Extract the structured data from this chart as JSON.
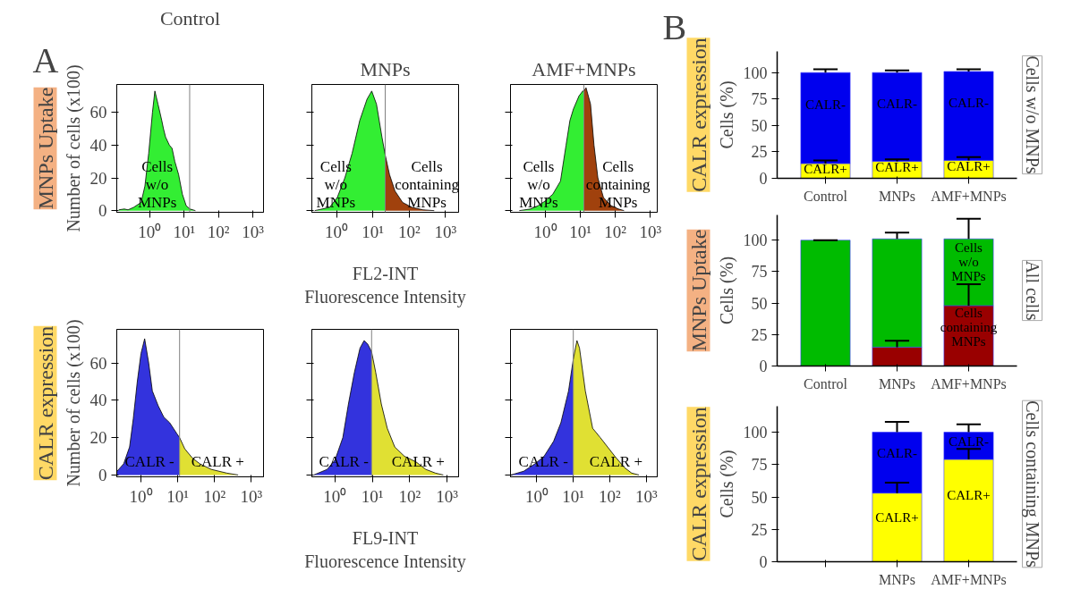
{
  "chart_data": [
    {
      "type": "area",
      "title": "Control",
      "ylabel": "Number of cells (x100)",
      "xlim": [
        0.11,
        2040
      ],
      "ylim": [
        -1,
        77
      ],
      "xticks": [
        {
          "value": 1,
          "label": "10⁰"
        },
        {
          "value": 10,
          "label": "10¹"
        },
        {
          "value": 100,
          "label": "10²"
        },
        {
          "value": 1000,
          "label": "10³"
        }
      ],
      "yticks": [
        0,
        20,
        40,
        60
      ],
      "log": "x",
      "grid": false,
      "series": [
        {
          "name": "Cells\nw/o\nMNPs",
          "color": "#33ee33",
          "x": [
            0.126,
            0.182,
            0.234,
            0.339,
            0.562,
            0.724,
            0.933,
            1.2,
            1.41,
            1.74,
            2.24,
            2.51,
            2.88,
            3.72,
            4.47,
            5.37,
            6.92,
            8.91,
            11.5,
            14.8,
            21.4
          ],
          "values": [
            0.5,
            1,
            0.5,
            2,
            5,
            15,
            35,
            60,
            73,
            65,
            55,
            50,
            45,
            40,
            38,
            30,
            22,
            10,
            3,
            1,
            0
          ]
        }
      ],
      "ref_lines": [
        {
          "axis": "x",
          "value": 14.5,
          "color": "#808080"
        }
      ],
      "annotations": [
        "A",
        "MNPs Uptake"
      ]
    },
    {
      "type": "area",
      "title": "MNPs",
      "xlabel": "FL2-INT\nFluorescence Intensity",
      "xlim": [
        0.21,
        2290
      ],
      "ylim": [
        -1,
        77
      ],
      "xticks": [
        {
          "value": 1,
          "label": "10⁰"
        },
        {
          "value": 10,
          "label": "10¹"
        },
        {
          "value": 100,
          "label": "10²"
        },
        {
          "value": 1000,
          "label": "10³"
        }
      ],
      "yticks": [
        0,
        20,
        40,
        60
      ],
      "log": "x",
      "grid": false,
      "tick_labels": "x",
      "series": [
        {
          "name": "Cells\nw/o\nMNPs",
          "color": "#33ee33",
          "x": [
            0.251,
            0.646,
            1.05,
            1.7,
            2.69,
            4.37,
            6.92,
            9.33,
            12.6,
            17.8,
            21.9
          ],
          "values": [
            0,
            2,
            8,
            20,
            35,
            55,
            68,
            73,
            65,
            45,
            34
          ]
        },
        {
          "name": "Cells\ncontaining\nMNPs",
          "color": "#a0410d",
          "x": [
            21.9,
            28.8,
            40.7,
            66.1,
            120,
            240,
            490
          ],
          "values": [
            34,
            22,
            12,
            5,
            2,
            0.5,
            0
          ]
        }
      ],
      "ref_lines": [
        {
          "axis": "x",
          "value": 21.9,
          "color": "#808080"
        }
      ]
    },
    {
      "type": "area",
      "title": "AMF+MNPs",
      "xlim": [
        0.1,
        1580
      ],
      "ylim": [
        -1,
        77
      ],
      "xticks": [
        {
          "value": 1,
          "label": "10⁰"
        },
        {
          "value": 10,
          "label": "10¹"
        },
        {
          "value": 100,
          "label": "10²"
        },
        {
          "value": 1000,
          "label": "10³"
        }
      ],
      "yticks": [
        0,
        20,
        40,
        60
      ],
      "log": "x",
      "grid": false,
      "tick_labels": "x",
      "series": [
        {
          "name": "Cells\nw/o\nMNPs",
          "color": "#33ee33",
          "x": [
            0.178,
            0.372,
            0.617,
            1,
            1.62,
            2.69,
            3.89,
            5.01,
            6.31,
            9.12,
            11.7,
            12.6
          ],
          "values": [
            0,
            1,
            3,
            6,
            10,
            18,
            40,
            55,
            62,
            70,
            73,
            73
          ]
        },
        {
          "name": "Cells\ncontaining\nMNPs",
          "color": "#a0410d",
          "x": [
            12.6,
            14.5,
            19.5,
            24.5,
            31.6,
            45.7,
            75.9,
            123,
            178
          ],
          "values": [
            73,
            75,
            65,
            40,
            20,
            8,
            3,
            1,
            0
          ]
        }
      ],
      "ref_lines": [
        {
          "axis": "x",
          "value": 12.6,
          "color": "#808080"
        }
      ]
    },
    {
      "type": "area",
      "ylabel": "Number of cells (x100)",
      "xlim": [
        0.22,
        2140
      ],
      "ylim": [
        -1,
        78
      ],
      "xticks": [
        {
          "value": 1,
          "label": "10⁰"
        },
        {
          "value": 10,
          "label": "10¹"
        },
        {
          "value": 100,
          "label": "10²"
        },
        {
          "value": 1000,
          "label": "10³"
        }
      ],
      "yticks": [
        0,
        20,
        40,
        60
      ],
      "log": "x",
      "grid": false,
      "series": [
        {
          "name": "CALR -",
          "color": "#3333dd",
          "x": [
            0.224,
            0.339,
            0.49,
            0.617,
            0.794,
            1,
            1.26,
            1.62,
            2.04,
            2.95,
            4.17,
            6.03,
            7.59,
            9.55,
            11.2
          ],
          "values": [
            2,
            6,
            15,
            30,
            50,
            65,
            73,
            60,
            45,
            37,
            31,
            28,
            25,
            22,
            20
          ]
        },
        {
          "name": "CALR +",
          "color": "#e0e033",
          "x": [
            11.2,
            15.5,
            25.1,
            39.8,
            81.3,
            214,
            437
          ],
          "values": [
            20,
            14,
            9,
            6,
            3,
            1,
            0
          ]
        }
      ],
      "ref_lines": [
        {
          "axis": "x",
          "value": 11.2,
          "color": "#808080"
        }
      ],
      "annotations": [
        "CALR expression"
      ]
    },
    {
      "type": "area",
      "xlabel": "FL9-INT\nFluorescence Intensity",
      "xlim": [
        0.24,
        2040
      ],
      "ylim": [
        -1,
        78
      ],
      "xticks": [
        {
          "value": 1,
          "label": "10⁰"
        },
        {
          "value": 10,
          "label": "10¹"
        },
        {
          "value": 100,
          "label": "10²"
        },
        {
          "value": 1000,
          "label": "10³"
        }
      ],
      "yticks": [
        0,
        20,
        40,
        60
      ],
      "log": "x",
      "grid": false,
      "tick_labels": "x",
      "series": [
        {
          "name": "CALR -",
          "color": "#3333dd",
          "x": [
            0.269,
            0.617,
            1,
            1.62,
            2.29,
            3.31,
            4.68,
            6.03,
            7.59,
            9.55
          ],
          "values": [
            0,
            3,
            8,
            20,
            38,
            55,
            68,
            72,
            70,
            66
          ]
        },
        {
          "name": "CALR +",
          "color": "#e0e033",
          "x": [
            9.55,
            12.3,
            17.4,
            25.1,
            39.8,
            72.4,
            148,
            269,
            490,
            794
          ],
          "values": [
            66,
            55,
            38,
            25,
            15,
            10,
            7,
            3,
            1,
            0
          ]
        }
      ],
      "ref_lines": [
        {
          "axis": "x",
          "value": 9.55,
          "color": "#808080"
        }
      ]
    },
    {
      "type": "area",
      "xlim": [
        0.19,
        2000
      ],
      "ylim": [
        -1,
        78
      ],
      "xticks": [
        {
          "value": 1,
          "label": "10⁰"
        },
        {
          "value": 10,
          "label": "10¹"
        },
        {
          "value": 100,
          "label": "10²"
        },
        {
          "value": 1000,
          "label": "10³"
        }
      ],
      "yticks": [
        0,
        20,
        40,
        60
      ],
      "log": "x",
      "grid": false,
      "tick_labels": "x",
      "series": [
        {
          "name": "CALR -",
          "color": "#3333dd",
          "x": [
            0.195,
            0.437,
            0.891,
            1.58,
            2.88,
            4.57,
            7.41,
            10
          ],
          "values": [
            0,
            2,
            6,
            10,
            18,
            28,
            45,
            62
          ]
        },
        {
          "name": "CALR +",
          "color": "#e0e033",
          "x": [
            10,
            12.6,
            14.8,
            21.4,
            33.9,
            55,
            87.1,
            138,
            251,
            398,
            631
          ],
          "values": [
            62,
            72,
            68,
            45,
            25,
            20,
            15,
            10,
            4,
            1,
            0
          ]
        }
      ],
      "ref_lines": [
        {
          "axis": "x",
          "value": 10,
          "color": "#808080"
        }
      ]
    },
    {
      "type": "bar",
      "stacked": true,
      "ylabel": "Cells (%)",
      "y2label": "Cells w/o MNPs",
      "categories": [
        "Control",
        "MNPs",
        "AMF+MNPs"
      ],
      "ylim": [
        0,
        120
      ],
      "yticks": [
        0,
        25,
        50,
        75,
        100
      ],
      "grid": false,
      "series": [
        {
          "color": "#ffff00",
          "values": [
            14,
            16,
            17
          ],
          "errors": [
            [
              14,
              17
            ],
            [
              16,
              18
            ],
            [
              17,
              20
            ]
          ],
          "value_labels": [
            "CALR+",
            "CALR+",
            "CALR+"
          ]
        },
        {
          "color": "#0000ee",
          "values": [
            86,
            84,
            84
          ],
          "errors": [
            [
              100,
              103
            ],
            [
              100,
              102
            ],
            [
              101,
              103
            ]
          ],
          "value_labels": [
            "CALR-",
            "CALR-",
            "CALR-"
          ]
        }
      ],
      "annotations": [
        "B",
        "CALR expression"
      ]
    },
    {
      "type": "bar",
      "stacked": true,
      "ylabel": "Cells (%)",
      "y2label": "All cells",
      "categories": [
        "Control",
        "MNPs",
        "AMF+MNPs"
      ],
      "ylim": [
        0,
        120
      ],
      "yticks": [
        0,
        25,
        50,
        75,
        100
      ],
      "grid": false,
      "series": [
        {
          "color": "#990000",
          "values": [
            0,
            15,
            48
          ],
          "errors": [
            null,
            [
              15,
              20
            ],
            [
              48,
              65
            ]
          ],
          "value_labels": [
            null,
            null,
            "Cells\ncontaining\nMNPs"
          ]
        },
        {
          "color": "#00bb00",
          "values": [
            100,
            86,
            53
          ],
          "errors": [
            [
              100,
              100
            ],
            [
              101,
              106
            ],
            [
              101,
              117
            ]
          ],
          "value_labels": [
            null,
            null,
            "Cells\nw/o\nMNPs"
          ]
        }
      ],
      "annotations": [
        "MNPs Uptake"
      ]
    },
    {
      "type": "bar",
      "stacked": true,
      "ylabel": "Cells (%)",
      "y2label": "Cells containing MNPs",
      "categories": [
        null,
        "MNPs",
        "AMF+MNPs"
      ],
      "ylim": [
        0,
        120
      ],
      "yticks": [
        0,
        25,
        50,
        75,
        100
      ],
      "grid": false,
      "series": [
        {
          "color": "#ffff00",
          "values": [
            null,
            53,
            79
          ],
          "errors": [
            null,
            [
              53,
              61
            ],
            [
              79,
              87
            ]
          ],
          "value_labels": [
            null,
            "CALR+",
            "CALR+"
          ]
        },
        {
          "color": "#0000ee",
          "values": [
            null,
            47,
            21
          ],
          "errors": [
            null,
            [
              100,
              108
            ],
            [
              100,
              106
            ]
          ],
          "value_labels": [
            null,
            "CALR-",
            "CALR-"
          ]
        }
      ],
      "annotations": [
        "CALR expression"
      ]
    }
  ]
}
